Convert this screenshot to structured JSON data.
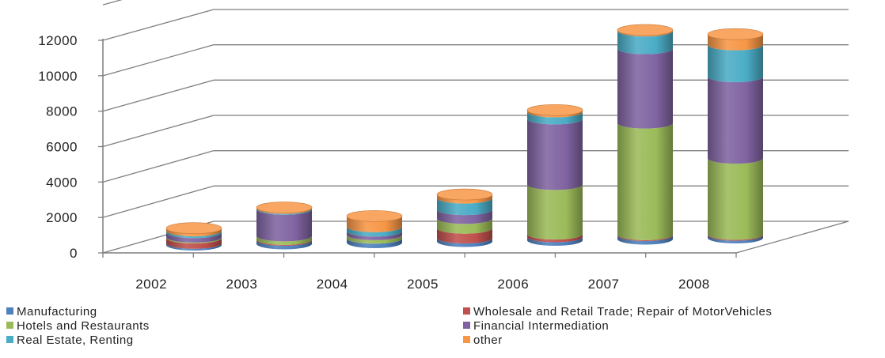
{
  "chart_data": {
    "type": "bar",
    "stacked": true,
    "three_d": true,
    "title": "",
    "xlabel": "",
    "ylabel": "",
    "ylim": [
      0,
      12000
    ],
    "yticks": [
      0,
      2000,
      4000,
      6000,
      8000,
      10000,
      12000
    ],
    "grid": true,
    "legend_position": "bottom",
    "categories": [
      "2002",
      "2003",
      "2004",
      "2005",
      "2006",
      "2007",
      "2008"
    ],
    "series": [
      {
        "name": "Manufacturing",
        "color": "#4f81bd",
        "values": [
          100,
          200,
          250,
          200,
          200,
          200,
          150
        ]
      },
      {
        "name": "Wholesale and Retail Trade; Repair of MotorVehicles",
        "color": "#c0504d",
        "values": [
          300,
          50,
          0,
          550,
          150,
          50,
          50
        ]
      },
      {
        "name": "Hotels and Restaurants",
        "color": "#9bbb59",
        "values": [
          50,
          200,
          200,
          550,
          2800,
          6300,
          4300
        ]
      },
      {
        "name": "Financial Intermediation",
        "color": "#8064a2",
        "values": [
          250,
          1500,
          200,
          500,
          3700,
          4200,
          4600
        ]
      },
      {
        "name": "Real Estate, Renting",
        "color": "#4bacc6",
        "values": [
          100,
          50,
          250,
          650,
          400,
          1000,
          1800
        ]
      },
      {
        "name": "other",
        "color": "#f79646",
        "values": [
          150,
          50,
          600,
          200,
          100,
          50,
          600
        ]
      }
    ]
  }
}
